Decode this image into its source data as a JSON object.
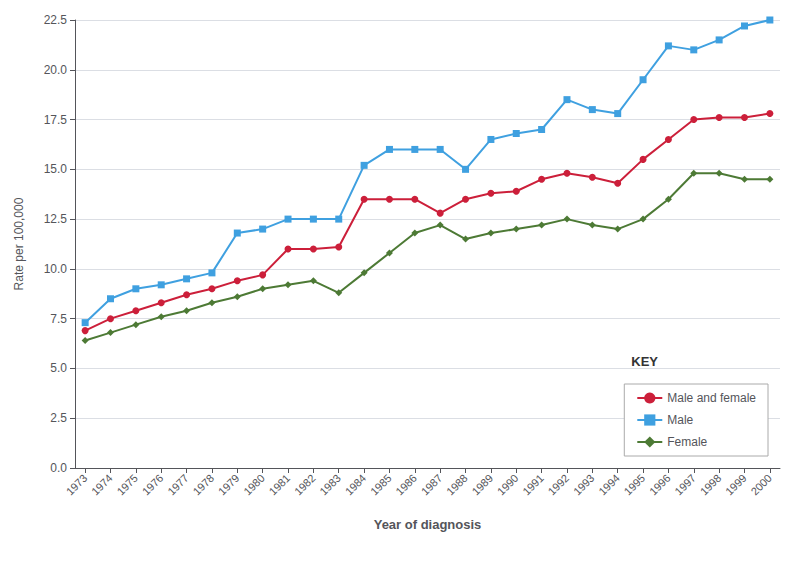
{
  "chart_data": {
    "type": "line",
    "xlabel": "Year of diagnosis",
    "ylabel": "Rate per 100,000",
    "x": [
      1973,
      1974,
      1975,
      1976,
      1977,
      1978,
      1979,
      1980,
      1981,
      1982,
      1983,
      1984,
      1985,
      1986,
      1987,
      1988,
      1989,
      1990,
      1991,
      1992,
      1993,
      1994,
      1995,
      1996,
      1997,
      1998,
      1999,
      2000
    ],
    "series": [
      {
        "name": "Male and female",
        "color": "#cc1f3a",
        "marker": "circle",
        "values": [
          6.9,
          7.5,
          7.9,
          8.3,
          8.7,
          9.0,
          9.4,
          9.7,
          11.0,
          11.0,
          11.1,
          13.5,
          13.5,
          13.5,
          12.8,
          13.5,
          13.8,
          13.9,
          14.5,
          14.8,
          14.6,
          14.3,
          15.5,
          16.5,
          17.5,
          17.6,
          17.6,
          17.8
        ]
      },
      {
        "name": "Male",
        "color": "#3fa0e0",
        "marker": "square",
        "values": [
          7.3,
          8.5,
          9.0,
          9.2,
          9.5,
          9.8,
          11.8,
          12.0,
          12.5,
          12.5,
          12.5,
          15.2,
          16.0,
          16.0,
          16.0,
          15.0,
          16.5,
          16.8,
          17.0,
          18.5,
          18.0,
          17.8,
          19.5,
          21.2,
          21.0,
          21.5,
          22.2,
          22.5
        ]
      },
      {
        "name": "Female",
        "color": "#4d7a35",
        "marker": "diamond",
        "values": [
          6.4,
          6.8,
          7.2,
          7.6,
          7.9,
          8.3,
          8.6,
          9.0,
          9.2,
          9.4,
          8.8,
          9.8,
          10.8,
          11.8,
          12.2,
          11.5,
          11.8,
          12.0,
          12.2,
          12.5,
          12.2,
          12.0,
          12.5,
          13.5,
          14.8,
          14.8,
          14.5,
          14.5
        ]
      }
    ],
    "xlim": [
      1972.6,
      2000.4
    ],
    "xticks": [
      1973,
      1974,
      1975,
      1976,
      1977,
      1978,
      1979,
      1980,
      1981,
      1982,
      1983,
      1984,
      1985,
      1986,
      1987,
      1988,
      1989,
      1990,
      1991,
      1992,
      1993,
      1994,
      1995,
      1996,
      1997,
      1998,
      1999,
      2000
    ],
    "ylim": [
      0,
      22.5
    ],
    "yticks": [
      {
        "value": 0,
        "label": "0.0"
      },
      2.5,
      {
        "value": 5.0,
        "label": "5.0"
      },
      7.5,
      {
        "value": 10.0,
        "label": "10.0"
      },
      12.5,
      {
        "value": 15.0,
        "label": "15.0"
      },
      17.5,
      {
        "value": 20.0,
        "label": "20.0"
      },
      22.5
    ],
    "grid": true,
    "legend": "lower right",
    "annotations": [
      {
        "text": "KEY"
      }
    ]
  }
}
